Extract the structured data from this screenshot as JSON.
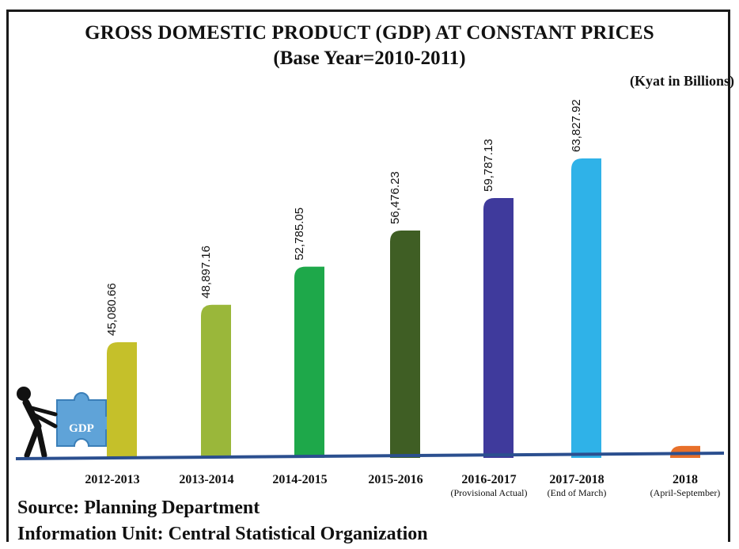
{
  "chart_data": {
    "type": "bar",
    "title": "GROSS DOMESTIC PRODUCT (GDP) AT CONSTANT PRICES",
    "subtitle": "(Base Year=2010-2011)",
    "unit_label": "(Kyat in Billions)",
    "categories": [
      "2012-2013",
      "2013-2014",
      "2014-2015",
      "2015-2016",
      "2016-2017",
      "2017-2018",
      "2018"
    ],
    "category_notes": [
      "",
      "",
      "",
      "",
      "(Provisional Actual)",
      "(End of March)",
      "(April-September)"
    ],
    "values": [
      45080.66,
      48897.16,
      52785.05,
      56476.23,
      59787.13,
      63827.92,
      34500
    ],
    "value_labels": [
      "45,080.66",
      "48,897.16",
      "52,785.05",
      "56,476.23",
      "59,787.13",
      "63,827.92",
      ""
    ],
    "colors": [
      "#c5c02a",
      "#9ab73a",
      "#1ea84a",
      "#3f5e24",
      "#3f3a9c",
      "#2fb2e8",
      "#e8702a"
    ],
    "legend": "none",
    "grid": false
  },
  "footer": {
    "source": "Source: Planning Department",
    "unit": "Information Unit: Central Statistical Organization"
  },
  "illustration": {
    "puzzle_text": "GDP"
  }
}
